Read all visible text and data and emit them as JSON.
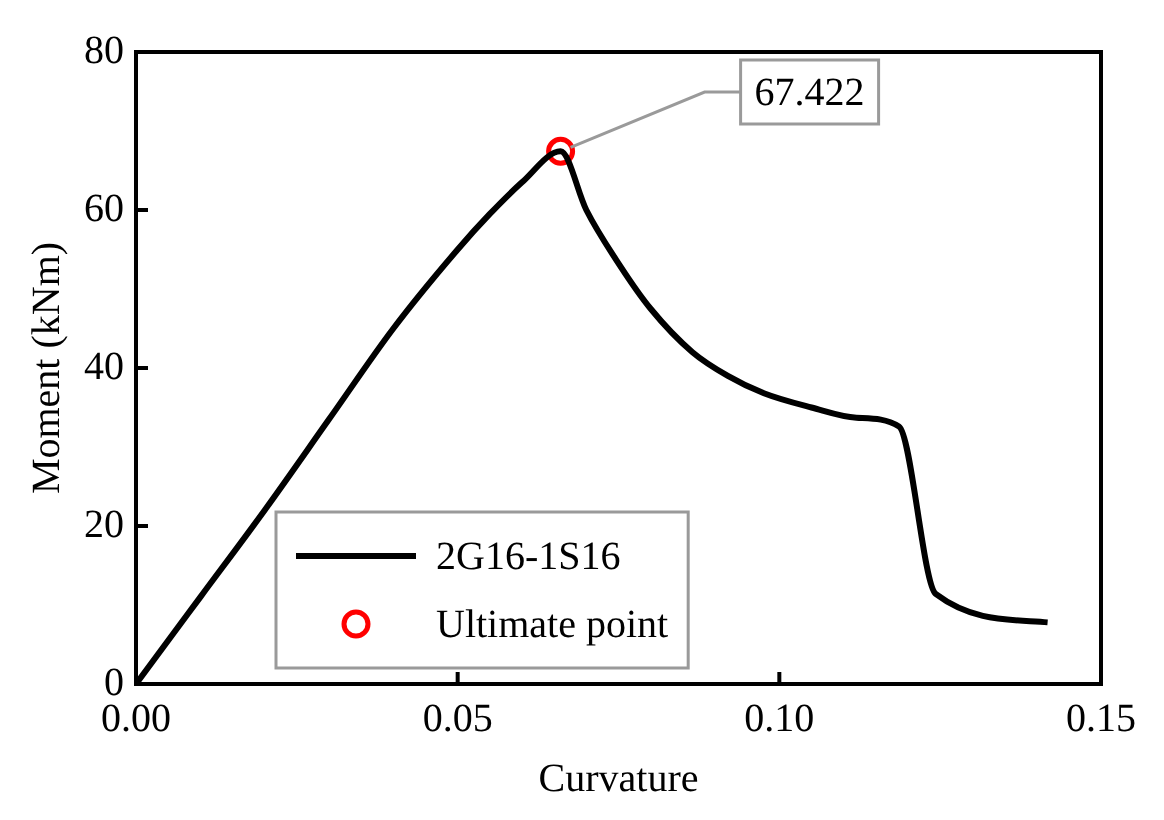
{
  "chart_data": {
    "type": "line",
    "xlabel": "Curvature",
    "ylabel": "Moment (kNm)",
    "xlim": [
      0,
      0.15
    ],
    "xticks": [
      {
        "value": 0,
        "label": "0.00"
      },
      {
        "value": 0.05,
        "label": "0.05"
      },
      {
        "value": 0.1,
        "label": "0.10"
      },
      {
        "value": 0.15,
        "label": "0.15"
      }
    ],
    "ylim": [
      0,
      80
    ],
    "yticks": [
      0,
      20,
      40,
      60,
      80
    ],
    "grid": false,
    "legend": "bottom",
    "series": [
      {
        "name": "2G16-1S16",
        "type": "line",
        "color": "#000000",
        "marker": "none",
        "x": [
          0,
          0.01,
          0.02,
          0.03,
          0.04,
          0.05,
          0.055,
          0.06,
          0.066,
          0.07,
          0.0752,
          0.08,
          0.0865,
          0.092,
          0.0976,
          0.105,
          0.112,
          0.1186,
          0.1243,
          0.1417
        ],
        "values": [
          0,
          11,
          22,
          33.5,
          45,
          55,
          59.5,
          63.5,
          67.422,
          60,
          53,
          47.5,
          42,
          39,
          36.8,
          35,
          33.7,
          32.6,
          11.4,
          7.8
        ]
      },
      {
        "name": "Ultimate point",
        "type": "scatter",
        "color": "#ff0000",
        "marker": "circle",
        "x": [
          0.066
        ],
        "values": [
          67.422
        ]
      }
    ],
    "annotations": [
      {
        "text": "67.422",
        "x": 0.066,
        "y": 67.422
      }
    ]
  }
}
